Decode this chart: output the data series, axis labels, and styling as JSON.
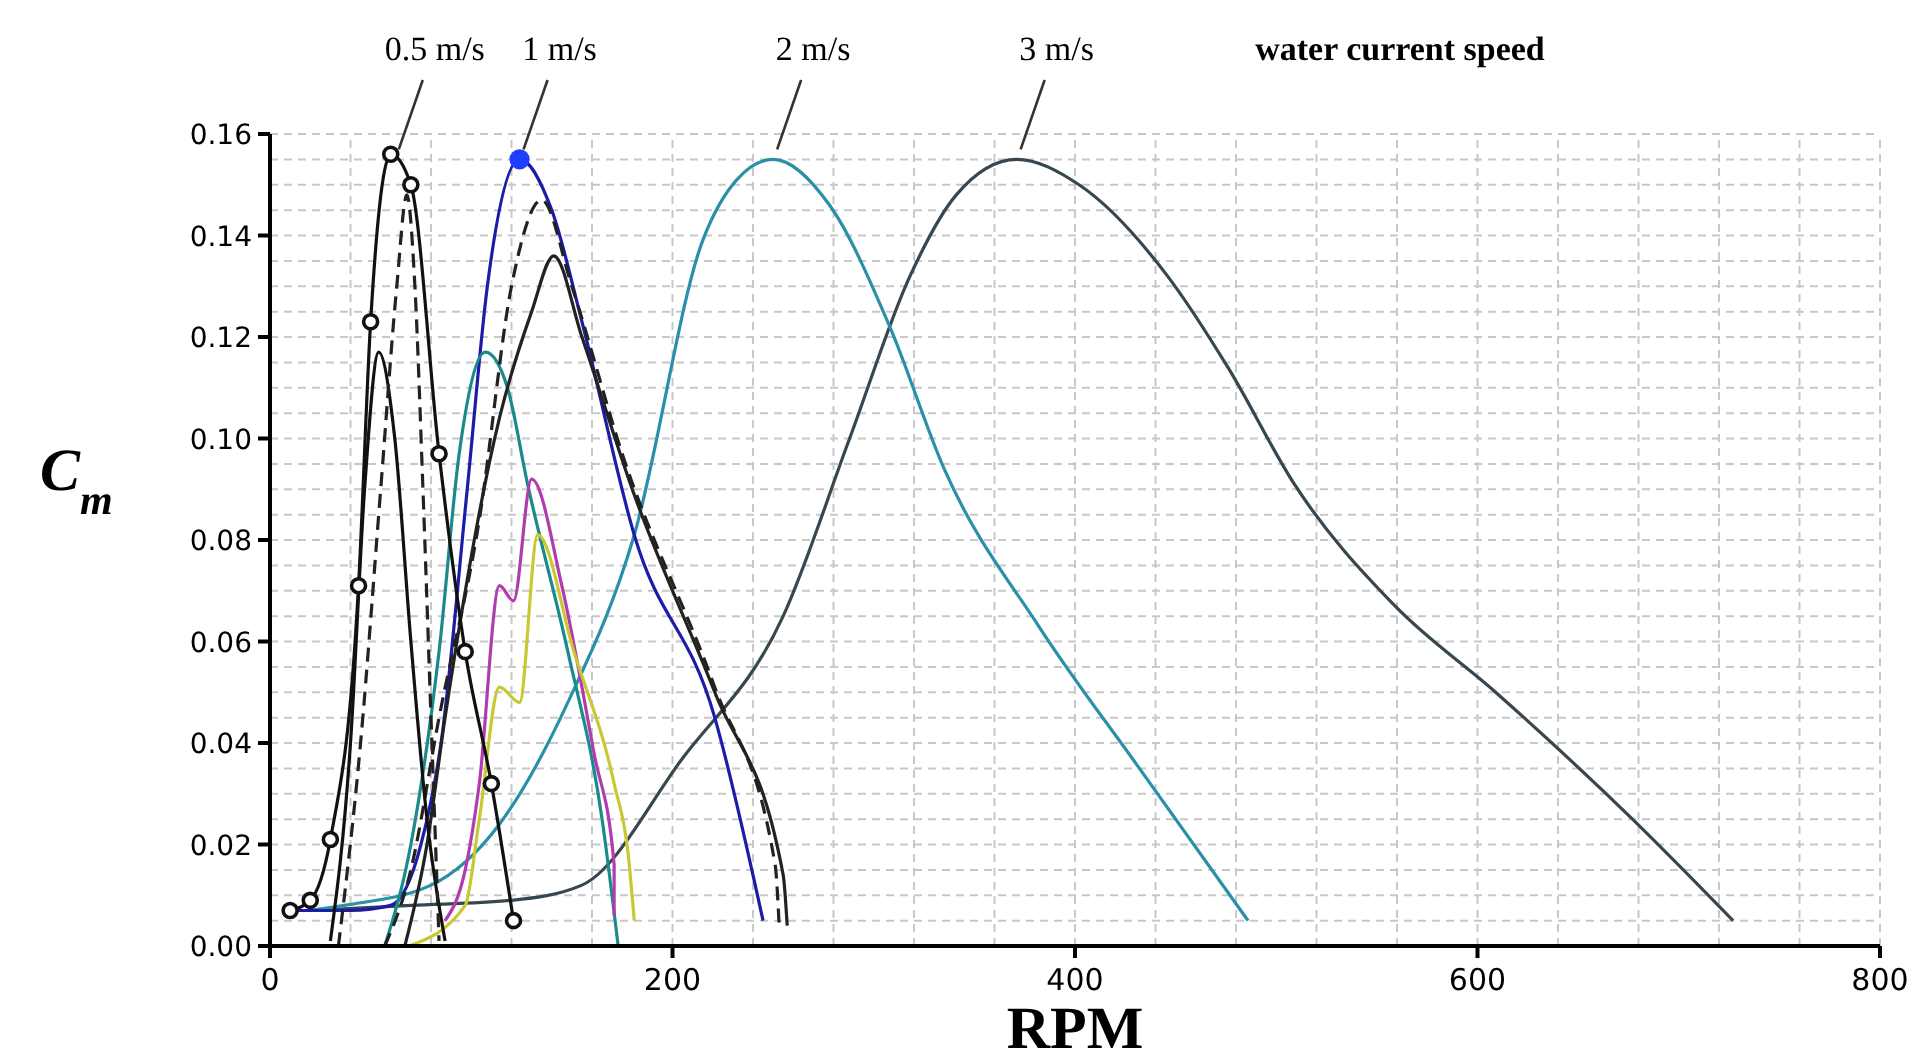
{
  "chart_data": {
    "type": "line",
    "xlabel": "RPM",
    "ylabel": "C$_{m}$",
    "annotations": [
      {
        "text": "0.5 m/s",
        "x": 62,
        "y": 0.155
      },
      {
        "text": "1 m/s",
        "x": 124,
        "y": 0.155
      },
      {
        "text": "2 m/s",
        "x": 250,
        "y": 0.155
      },
      {
        "text": "3 m/s",
        "x": 371,
        "y": 0.155
      },
      "water current speed"
    ],
    "xlim": [
      0,
      800
    ],
    "ylim": [
      0,
      0.16
    ],
    "xticks": [
      0,
      {
        "value": 40,
        "label": null
      },
      {
        "value": 80,
        "label": null
      },
      {
        "value": 120,
        "label": null
      },
      {
        "value": 160,
        "label": null
      },
      200,
      {
        "value": 240,
        "label": null
      },
      {
        "value": 280,
        "label": null
      },
      {
        "value": 320,
        "label": null
      },
      {
        "value": 360,
        "label": null
      },
      400,
      {
        "value": 440,
        "label": null
      },
      {
        "value": 480,
        "label": null
      },
      {
        "value": 520,
        "label": null
      },
      {
        "value": 560,
        "label": null
      },
      600,
      {
        "value": 640,
        "label": null
      },
      {
        "value": 680,
        "label": null
      },
      {
        "value": 720,
        "label": null
      },
      {
        "value": 760,
        "label": null
      },
      800
    ],
    "yticks": [
      {
        "value": 0,
        "label": "0.00"
      },
      {
        "value": 0.005,
        "label": null
      },
      {
        "value": 0.01,
        "label": null
      },
      {
        "value": 0.015,
        "label": null
      },
      {
        "value": 0.02,
        "label": "0.02"
      },
      {
        "value": 0.025,
        "label": null
      },
      {
        "value": 0.03,
        "label": null
      },
      {
        "value": 0.035,
        "label": null
      },
      {
        "value": 0.04,
        "label": "0.04"
      },
      {
        "value": 0.045,
        "label": null
      },
      {
        "value": 0.05,
        "label": null
      },
      {
        "value": 0.055,
        "label": null
      },
      {
        "value": 0.06,
        "label": "0.06"
      },
      {
        "value": 0.065,
        "label": null
      },
      {
        "value": 0.07,
        "label": null
      },
      {
        "value": 0.075,
        "label": null
      },
      {
        "value": 0.08,
        "label": "0.08"
      },
      {
        "value": 0.085,
        "label": null
      },
      {
        "value": 0.09,
        "label": null
      },
      {
        "value": 0.095,
        "label": null
      },
      {
        "value": 0.1,
        "label": "0.10"
      },
      {
        "value": 0.105,
        "label": null
      },
      {
        "value": 0.11,
        "label": null
      },
      {
        "value": 0.115,
        "label": null
      },
      {
        "value": 0.12,
        "label": "0.12"
      },
      {
        "value": 0.125,
        "label": null
      },
      {
        "value": 0.13,
        "label": null
      },
      {
        "value": 0.135,
        "label": null
      },
      {
        "value": 0.14,
        "label": "0.14"
      },
      {
        "value": 0.145,
        "label": null
      },
      {
        "value": 0.15,
        "label": null
      },
      {
        "value": 0.155,
        "label": null
      },
      {
        "value": 0.16,
        "label": "0.16"
      }
    ],
    "grid": true,
    "series": [
      {
        "color": "#37474f",
        "x": [
          20,
          70,
          120,
          155,
          205,
          255,
          288,
          318,
          341,
          371,
          402,
          446,
          476,
          509,
          559,
          609,
          677,
          727
        ],
        "values": [
          0.007,
          0.008,
          0.009,
          0.012,
          0.037,
          0.065,
          0.1,
          0.132,
          0.148,
          0.155,
          0.15,
          0.132,
          0.114,
          0.091,
          0.067,
          0.05,
          0.025,
          0.005
        ]
      },
      {
        "color": "#2a8fa8",
        "x": [
          20,
          37,
          80,
          114,
          148,
          181,
          215,
          232,
          250,
          278,
          308,
          335,
          382,
          432,
          486
        ],
        "values": [
          0.007,
          0.008,
          0.012,
          0.024,
          0.048,
          0.081,
          0.139,
          0.151,
          0.155,
          0.146,
          0.122,
          0.094,
          0.063,
          0.035,
          0.005
        ]
      },
      {
        "color": "#1c1ca8",
        "x": [
          12,
          40,
          60,
          75,
          85,
          98,
          108,
          124,
          140,
          155,
          181,
          221,
          245
        ],
        "values": [
          0.007,
          0.007,
          0.008,
          0.02,
          0.04,
          0.09,
          0.13,
          0.155,
          0.145,
          0.123,
          0.081,
          0.045,
          0.005
        ]
      },
      {
        "type": "scatter",
        "color": "#1f3fff",
        "marker": "circle",
        "x": [
          124
        ],
        "values": [
          0.155
        ]
      },
      {
        "color": "#1a8a8a",
        "x": [
          57,
          70,
          84,
          94,
          107,
          118,
          128,
          148,
          165,
          173
        ],
        "values": [
          0,
          0.02,
          0.058,
          0.097,
          0.117,
          0.11,
          0.091,
          0.058,
          0.025,
          0
        ]
      },
      {
        "color": "#222222",
        "line_style": "dashed",
        "x": [
          57,
          70,
          84,
          104,
          120,
          135,
          150,
          175,
          221,
          251,
          253
        ],
        "values": [
          0,
          0.015,
          0.045,
          0.084,
          0.13,
          0.147,
          0.13,
          0.097,
          0.051,
          0.016,
          0.004
        ]
      },
      {
        "color": "#222222",
        "x": [
          67,
          78,
          87,
          114,
          130,
          141,
          155,
          180,
          221,
          255,
          257
        ],
        "values": [
          0,
          0.02,
          0.045,
          0.104,
          0.125,
          0.136,
          0.12,
          0.09,
          0.05,
          0.014,
          0.004
        ]
      },
      {
        "color": "#b03cb0",
        "x": [
          87,
          97,
          104,
          114,
          121,
          130,
          145,
          161,
          171,
          171
        ],
        "values": [
          0.005,
          0.015,
          0.032,
          0.071,
          0.068,
          0.092,
          0.071,
          0.038,
          0.016,
          0.006
        ]
      },
      {
        "color": "#c8c832",
        "x": [
          69,
          97,
          104,
          114,
          124,
          133,
          151,
          171,
          178,
          181
        ],
        "values": [
          0,
          0.008,
          0.025,
          0.051,
          0.048,
          0.081,
          0.058,
          0.032,
          0.018,
          0.005
        ]
      },
      {
        "color": "#111111",
        "x": [
          30,
          40,
          47,
          54,
          62,
          70,
          78,
          87
        ],
        "values": [
          0.001,
          0.04,
          0.09,
          0.117,
          0.1,
          0.06,
          0.025,
          0.001
        ]
      },
      {
        "color": "#222222",
        "line_style": "dashed",
        "x": [
          34,
          45,
          55,
          63,
          68,
          72,
          76,
          80,
          84
        ],
        "values": [
          0,
          0.04,
          0.09,
          0.13,
          0.148,
          0.13,
          0.09,
          0.045,
          0.001
        ]
      },
      {
        "color": "#111111",
        "marker": "circle",
        "x": [
          10,
          20,
          30,
          44,
          50,
          60,
          70,
          84,
          97,
          110,
          121
        ],
        "values": [
          0.007,
          0.009,
          0.021,
          0.071,
          0.123,
          0.156,
          0.15,
          0.097,
          0.058,
          0.032,
          0.005
        ]
      }
    ]
  }
}
